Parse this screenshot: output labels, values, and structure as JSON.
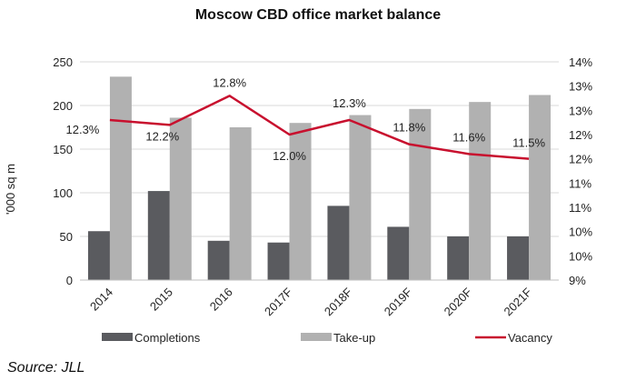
{
  "chart_data": {
    "type": "bar",
    "title": "Moscow CBD office market balance",
    "categories": [
      "2014",
      "2015",
      "2016",
      "2017F",
      "2018F",
      "2019F",
      "2020F",
      "2021F"
    ],
    "series": [
      {
        "name": "Completions",
        "type": "bar",
        "axis": "left",
        "color": "#5a5b5f",
        "values": [
          56,
          102,
          45,
          43,
          85,
          61,
          50,
          50
        ]
      },
      {
        "name": "Take-up",
        "type": "bar",
        "axis": "left",
        "color": "#b1b1b1",
        "values": [
          233,
          186,
          175,
          180,
          189,
          196,
          204,
          212
        ]
      },
      {
        "name": "Vacancy",
        "type": "line",
        "axis": "right",
        "color": "#c8102e",
        "values": [
          12.3,
          12.2,
          12.8,
          12.0,
          12.3,
          11.8,
          11.6,
          11.5
        ],
        "labels": [
          "12.3%",
          "12.2%",
          "12.8%",
          "12.0%",
          "12.3%",
          "11.8%",
          "11.6%",
          "11.5%"
        ]
      }
    ],
    "ylabel": "'000 sq m",
    "ylim": [
      0,
      250
    ],
    "yticks": [
      "0",
      "50",
      "100",
      "150",
      "200",
      "250"
    ],
    "y2lim": [
      9,
      13.5
    ],
    "y2ticks": [
      "9%",
      "10%",
      "10%",
      "11%",
      "11%",
      "12%",
      "12%",
      "13%",
      "13%",
      "14%"
    ],
    "grid": true,
    "legend": "bottom"
  },
  "source": "Source: JLL"
}
